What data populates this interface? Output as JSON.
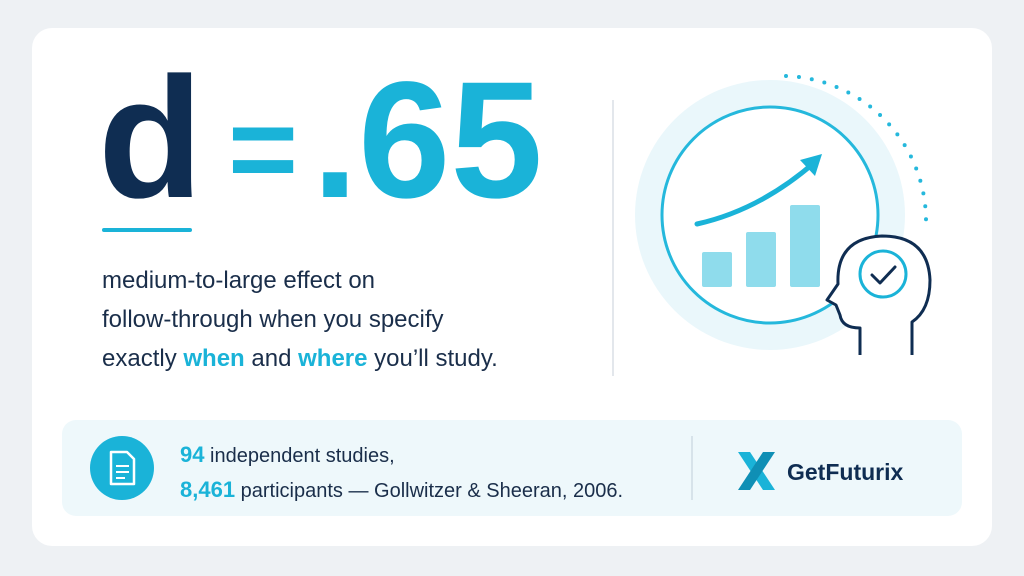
{
  "headline": {
    "variable": "d",
    "equals": "=",
    "value": ".65"
  },
  "body": {
    "part1": "medium-to-large effect on",
    "part2": "follow-through when you specify",
    "part3": "exactly ",
    "when": "when",
    "part4": " and ",
    "where": "where",
    "part5": " you’ll study."
  },
  "footer": {
    "studies_count": "94",
    "studies_text": " independent studies,",
    "participants_count": "8,461",
    "participants_text": " participants — Gollwitzer & Sheeran, 2006."
  },
  "brand": {
    "name": "GetFuturix"
  }
}
